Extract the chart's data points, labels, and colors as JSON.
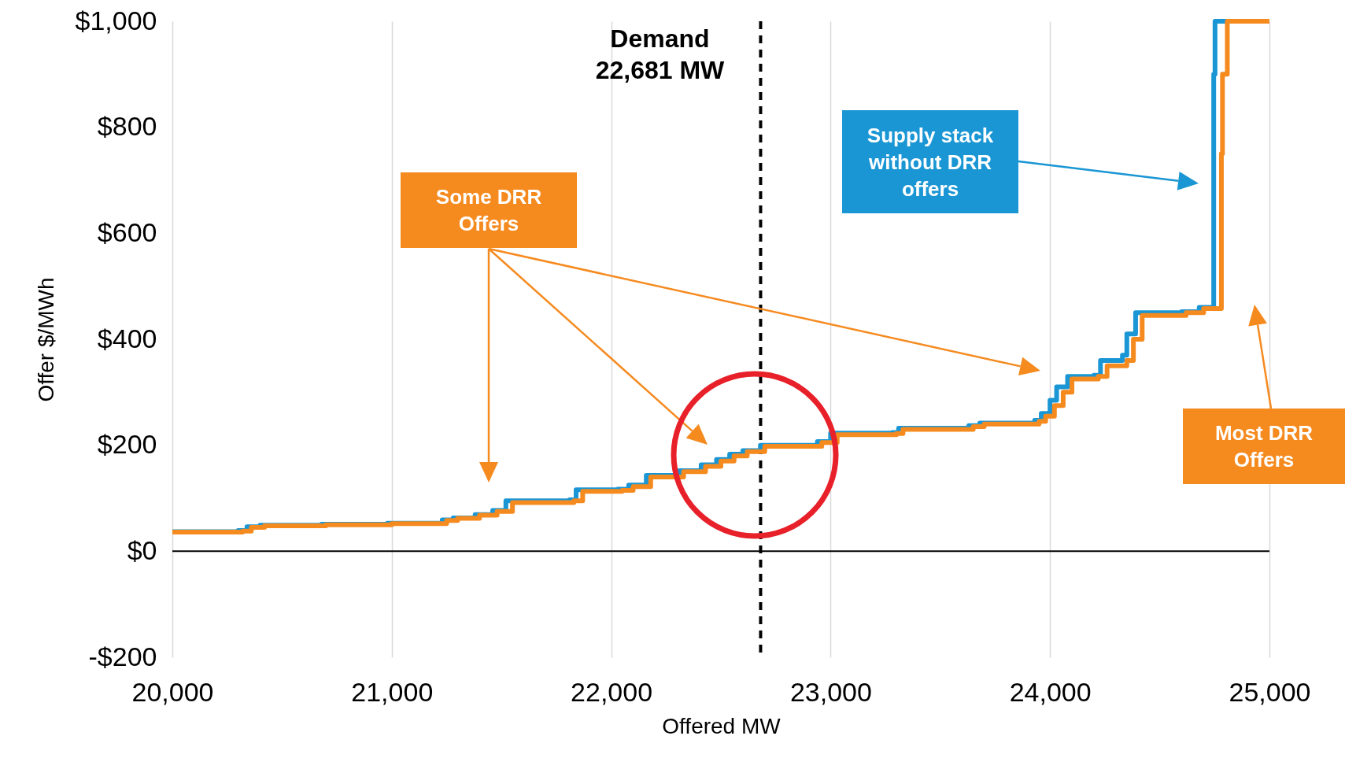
{
  "chart_data": {
    "type": "step",
    "xlabel": "Offered MW",
    "ylabel": "Offer $/MWh",
    "xlim": [
      20000,
      25000
    ],
    "xticks": [
      {
        "value": 20000,
        "label": "20,000"
      },
      {
        "value": 21000,
        "label": "21,000"
      },
      {
        "value": 22000,
        "label": "22,000"
      },
      {
        "value": 23000,
        "label": "23,000"
      },
      {
        "value": 24000,
        "label": "24,000"
      },
      {
        "value": 25000,
        "label": "25,000"
      }
    ],
    "ylim": [
      -200,
      1000
    ],
    "yticks": [
      {
        "value": -200,
        "label": "-$200"
      },
      {
        "value": 0,
        "label": "$0"
      },
      {
        "value": 200,
        "label": "$200"
      },
      {
        "value": 400,
        "label": "$400"
      },
      {
        "value": 600,
        "label": "$600"
      },
      {
        "value": 800,
        "label": "$800"
      },
      {
        "value": 1000,
        "label": "$1,000"
      }
    ],
    "grid": "x",
    "legend": false,
    "marker": "none",
    "line_style": "solid",
    "series": [
      {
        "color": "#1a96d4",
        "x": [
          20000,
          20300,
          20340,
          20400,
          20680,
          20980,
          21230,
          21280,
          21380,
          21460,
          21520,
          21810,
          21840,
          22030,
          22080,
          22160,
          22310,
          22410,
          22480,
          22540,
          22600,
          22680,
          22940,
          23000,
          23280,
          23310,
          23630,
          23680,
          23930,
          23960,
          24000,
          24030,
          24080,
          24200,
          24230,
          24330,
          24350,
          24390,
          24600,
          24680,
          24746,
          24752,
          24808
        ],
        "values": [
          37,
          39,
          46,
          49,
          51,
          53,
          59,
          63,
          69,
          77,
          95,
          97,
          116,
          117,
          125,
          143,
          152,
          163,
          173,
          183,
          190,
          200,
          207,
          223,
          224,
          232,
          237,
          242,
          247,
          260,
          285,
          310,
          330,
          332,
          360,
          370,
          410,
          450,
          452,
          460,
          900,
          1000,
          1000
        ]
      },
      {
        "color": "#f58a1f",
        "x": [
          20000,
          20320,
          20360,
          20420,
          20700,
          21000,
          21250,
          21300,
          21400,
          21480,
          21550,
          21830,
          21870,
          22050,
          22100,
          22180,
          22330,
          22430,
          22500,
          22560,
          22620,
          22700,
          22960,
          23030,
          23300,
          23330,
          23650,
          23700,
          23950,
          23980,
          24020,
          24060,
          24100,
          24220,
          24260,
          24350,
          24380,
          24420,
          24620,
          24700,
          24781,
          24786,
          24808,
          25000
        ],
        "values": [
          36,
          38,
          45,
          48,
          50,
          52,
          58,
          62,
          68,
          75,
          92,
          95,
          113,
          115,
          122,
          140,
          150,
          160,
          170,
          180,
          188,
          198,
          205,
          220,
          222,
          230,
          235,
          240,
          245,
          255,
          275,
          300,
          325,
          330,
          350,
          360,
          400,
          445,
          450,
          458,
          750,
          900,
          1000,
          1000
        ]
      }
    ],
    "ref_lines": [
      {
        "axis": "y",
        "value": 0,
        "color": "#000000",
        "line_style": "solid"
      },
      {
        "axis": "x",
        "value": 22681,
        "label": "Demand\n22,681 MW",
        "color": "#000000",
        "line_style": "dashed"
      }
    ],
    "annotations": [
      "Some DRR Offers",
      "Supply stack without DRR offers",
      "Most DRR Offers"
    ]
  }
}
